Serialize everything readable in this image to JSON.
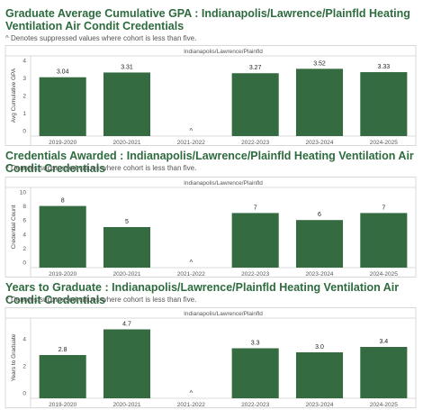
{
  "charts": [
    {
      "title": "Graduate Average Cumulative GPA : Indianapolis/Lawrence/Plainfld Heating Ventilation Air Condit Credentials",
      "note": "^ Denotes suppressed values where cohort is less than five.",
      "panel_header": "Indianapolis/Lawrence/Plainfld"
    },
    {
      "title": "Credentials Awarded : Indianapolis/Lawrence/Plainfld Heating Ventilation Air Condit Credentials",
      "note": "^ Denotes suppressed values where cohort is less than five.",
      "panel_header": "Indianapolis/Lawrence/Plainfld"
    },
    {
      "title": "Years to Graduate : Indianapolis/Lawrence/Plainfld Heating Ventilation Air Condit Credentials",
      "note": "^ Denotes suppressed values where cohort is less than five.",
      "panel_header": "Indianapolis/Lawrence/Plainfld"
    }
  ],
  "chart_data": [
    {
      "type": "bar",
      "title": "Graduate Average Cumulative GPA : Indianapolis/Lawrence/Plainfld Heating Ventilation Air Condit Credentials",
      "ylabel": "Avg Cumulative GPA",
      "categories": [
        "2019-2020",
        "2020-2021",
        "2021-2022",
        "2022-2023",
        "2023-2024",
        "2024-2025"
      ],
      "values": [
        3.04,
        3.31,
        null,
        3.27,
        3.52,
        3.33
      ],
      "labels": [
        "3.04",
        "3.31",
        "^",
        "3.27",
        "3.52",
        "3.33"
      ],
      "ylim": [
        0,
        4
      ],
      "yticks": [
        0,
        1,
        2,
        3,
        4
      ],
      "color": "#356b41"
    },
    {
      "type": "bar",
      "title": "Credentials Awarded : Indianapolis/Lawrence/Plainfld Heating Ventilation Air Condit Credentials",
      "ylabel": "Credential Count",
      "categories": [
        "2019-2020",
        "2020-2021",
        "2021-2022",
        "2022-2023",
        "2023-2024",
        "2024-2025"
      ],
      "values": [
        8,
        5,
        null,
        7,
        6,
        7
      ],
      "labels": [
        "8",
        "5",
        "^",
        "7",
        "6",
        "7"
      ],
      "ylim": [
        0,
        10
      ],
      "yticks": [
        0,
        2,
        4,
        6,
        8,
        10
      ],
      "color": "#356b41"
    },
    {
      "type": "bar",
      "title": "Years to Graduate : Indianapolis/Lawrence/Plainfld Heating Ventilation Air Condit Credentials",
      "ylabel": "Years to Graduate",
      "categories": [
        "2019-2020",
        "2020-2021",
        "2021-2022",
        "2022-2023",
        "2023-2024",
        "2024-2025"
      ],
      "values": [
        2.8,
        4.7,
        null,
        3.3,
        3.0,
        3.4
      ],
      "labels": [
        "2.8",
        "4.7",
        "^",
        "3.3",
        "3.0",
        "3.4"
      ],
      "ylim": [
        0,
        5.2
      ],
      "yticks": [
        0,
        2,
        4
      ],
      "color": "#356b41"
    }
  ]
}
